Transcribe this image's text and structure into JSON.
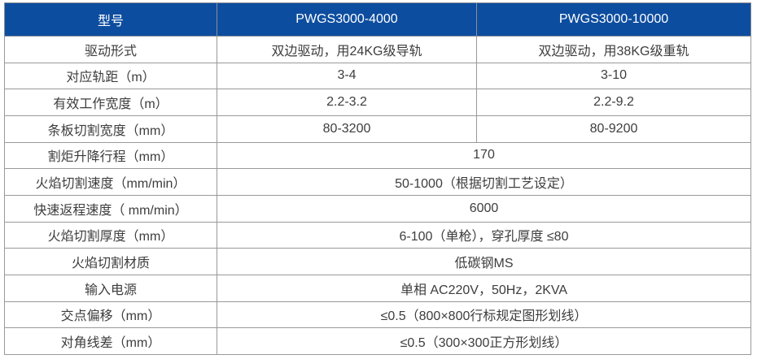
{
  "table": {
    "header": {
      "model_label": "型号",
      "model_a": "PWGS3000-4000",
      "model_b": "PWGS3000-10000"
    },
    "rows": [
      {
        "label": "驱动形式",
        "value_a": "双边驱动，用24KG级导轨",
        "value_b": "双边驱动，用38KG级重轨"
      },
      {
        "label": "对应轨距（m）",
        "value_a": "3-4",
        "value_b": "3-10"
      },
      {
        "label": "有效工作宽度（m）",
        "value_a": "2.2-3.2",
        "value_b": "2.2-9.2"
      },
      {
        "label": "条板切割宽度（mm）",
        "value_a": "80-3200",
        "value_b": "80-9200"
      },
      {
        "label": "割炬升降行程（mm）",
        "value": "170"
      },
      {
        "label": "火焰切割速度（mm/min）",
        "value": "50-1000（根据切割工艺设定）"
      },
      {
        "label": "快速返程速度（ mm/min）",
        "value": "6000"
      },
      {
        "label": "火焰切割厚度（mm）",
        "value": "6-100（单枪），穿孔厚度 ≤80"
      },
      {
        "label": "火焰切割材质",
        "value": "低碳钢MS"
      },
      {
        "label": "输入电源",
        "value": "单相 AC220V，50Hz，2KVA"
      },
      {
        "label": "交点偏移（mm）",
        "value": "≤0.5（800×800行标规定图形划线）"
      },
      {
        "label": "对角线差（mm）",
        "value": "≤0.5（300×300正方形划线）"
      }
    ],
    "colors": {
      "header_bg": "#0d4d9f",
      "header_text": "#ffffff",
      "border": "#999999",
      "body_text": "#3d3d3d"
    }
  }
}
